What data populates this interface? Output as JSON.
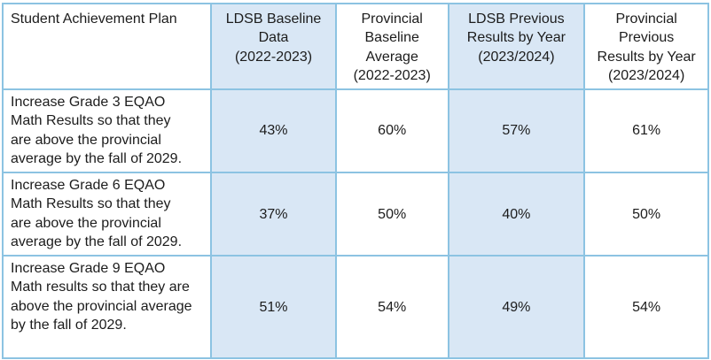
{
  "table": {
    "title": "Student Achievement Plan results table",
    "headers": [
      "Student Achievement Plan",
      "LDSB Baseline\nData\n(2022-2023)",
      "Provincial\nBaseline\nAverage\n(2022-2023)",
      "LDSB Previous\nResults by Year\n(2023/2024)",
      "Provincial\nPrevious\nResults by Year\n(2023/2024)"
    ],
    "rows": [
      {
        "goal": "Increase Grade 3 EQAO\nMath Results so that they\nare above the provincial\naverage by the fall of 2029.",
        "values": [
          "43%",
          "60%",
          "57%",
          "61%"
        ]
      },
      {
        "goal": "Increase Grade 6 EQAO\nMath Results so that they\nare above the provincial\naverage by the fall of 2029.",
        "values": [
          "37%",
          "50%",
          "40%",
          "50%"
        ]
      },
      {
        "goal": "Increase Grade 9 EQAO\nMath results so that they are\nabove the provincial average\nby the fall of 2029.",
        "values": [
          "51%",
          "54%",
          "49%",
          "54%"
        ]
      }
    ]
  },
  "colors": {
    "grid_border": "#8cc3e2",
    "header_separator": "#41a9de",
    "shaded_cell_fill": "#d9e7f5",
    "text": "#1c1c1c",
    "background": "#ffffff"
  }
}
